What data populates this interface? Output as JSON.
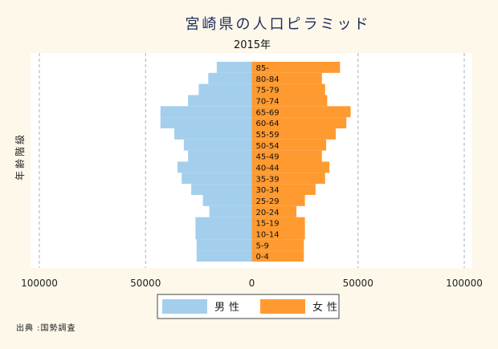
{
  "chart_data": {
    "type": "bar",
    "title": "宮崎県の人口ピラミッド",
    "subtitle": "2015年",
    "ylabel": "年齢階級",
    "xlim": [
      -100000,
      100000
    ],
    "xticks": [
      100000,
      50000,
      0,
      50000,
      100000
    ],
    "xtick_values": [
      -100000,
      -50000,
      0,
      50000,
      100000
    ],
    "grid": true,
    "legend_placement": "bottom",
    "categories": [
      "0-4",
      "5-9",
      "10-14",
      "15-19",
      "20-24",
      "25-29",
      "30-34",
      "35-39",
      "40-44",
      "45-49",
      "50-54",
      "55-59",
      "60-64",
      "65-69",
      "70-74",
      "75-79",
      "80-84",
      "85-"
    ],
    "series": [
      {
        "name": "男性",
        "color": "#a3cfec",
        "values": [
          26000,
          26000,
          26500,
          26500,
          20000,
          23000,
          28500,
          33000,
          35000,
          30000,
          32000,
          36500,
          43000,
          43000,
          30000,
          25000,
          20500,
          16500
        ]
      },
      {
        "name": "女性",
        "color": "#ff9a30",
        "values": [
          24500,
          24500,
          25000,
          25000,
          21000,
          25000,
          30000,
          34500,
          36500,
          33000,
          35000,
          39500,
          44500,
          46500,
          35500,
          34500,
          33000,
          41500
        ]
      }
    ],
    "source_note": "出典 :国勢調査"
  }
}
